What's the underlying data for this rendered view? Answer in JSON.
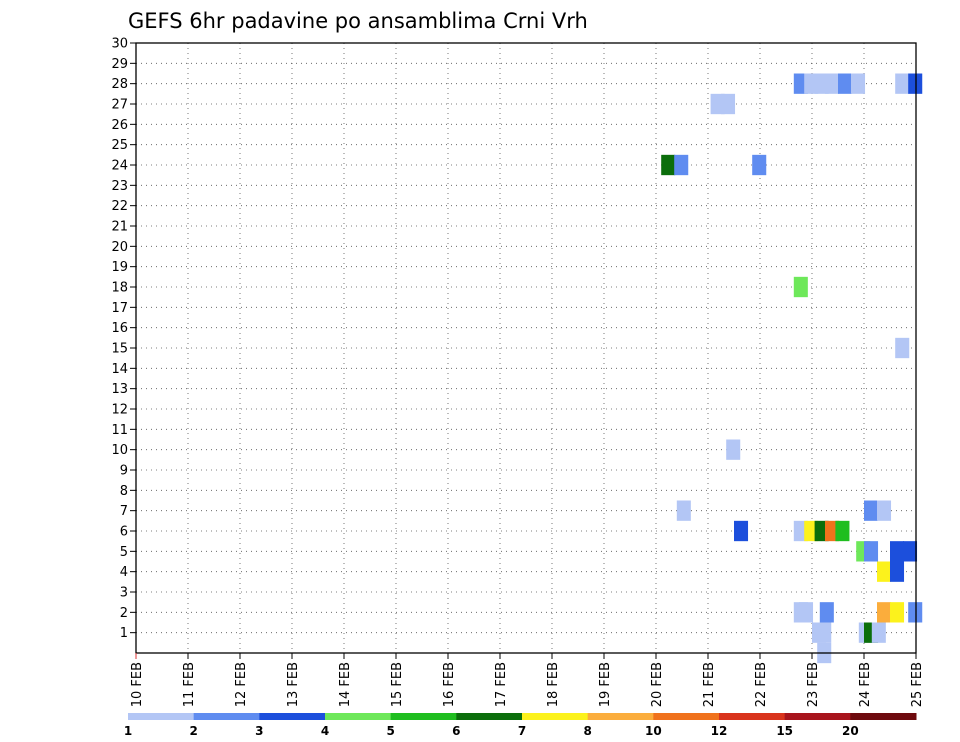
{
  "chart_data": {
    "type": "heatmap",
    "title": "GEFS 6hr padavine po ansamblima Crni Vrh",
    "xlabel": "",
    "ylabel": "",
    "x_ticks": [
      "10 FEB",
      "11 FEB",
      "12 FEB",
      "13 FEB",
      "14 FEB",
      "15 FEB",
      "16 FEB",
      "17 FEB",
      "18 FEB",
      "19 FEB",
      "20 FEB",
      "21 FEB",
      "22 FEB",
      "23 FEB",
      "24 FEB",
      "25 FEB"
    ],
    "x_range_days": [
      10,
      25
    ],
    "y_ticks": [
      "1",
      "2",
      "3",
      "4",
      "5",
      "6",
      "7",
      "8",
      "9",
      "10",
      "11",
      "12",
      "13",
      "14",
      "15",
      "16",
      "17",
      "18",
      "19",
      "20",
      "21",
      "22",
      "23",
      "24",
      "25",
      "26",
      "27",
      "28",
      "29",
      "30"
    ],
    "y_range": [
      0,
      30
    ],
    "grid": true,
    "legend": {
      "placement": "bottom",
      "labels": [
        "1",
        "2",
        "3",
        "4",
        "5",
        "6",
        "7",
        "8",
        "10",
        "12",
        "15",
        "20"
      ],
      "colors": [
        "#b3c6f5",
        "#5f8cf0",
        "#1c4fdc",
        "#6ee85a",
        "#1fbe1f",
        "#0b6e0b",
        "#fcf21c",
        "#fbad3c",
        "#f0721c",
        "#d9341c",
        "#a8141c",
        "#6e0a0e"
      ]
    },
    "cells": [
      {
        "day": 23.1,
        "member": 0,
        "color": "#b3c6f5"
      },
      {
        "day": 22.65,
        "member": 2,
        "color": "#b3c6f5"
      },
      {
        "day": 22.75,
        "member": 2,
        "color": "#b3c6f5"
      },
      {
        "day": 23.0,
        "member": 1,
        "color": "#b3c6f5"
      },
      {
        "day": 23.1,
        "member": 1,
        "color": "#b3c6f5"
      },
      {
        "day": 23.15,
        "member": 2,
        "color": "#5f8cf0"
      },
      {
        "day": 23.9,
        "member": 1,
        "color": "#b3c6f5"
      },
      {
        "day": 24.0,
        "member": 1,
        "color": "#0b6e0b"
      },
      {
        "day": 24.15,
        "member": 1,
        "color": "#b3c6f5"
      },
      {
        "day": 24.25,
        "member": 2,
        "color": "#fbad3c"
      },
      {
        "day": 24.5,
        "member": 2,
        "color": "#fcf21c"
      },
      {
        "day": 24.85,
        "member": 2,
        "color": "#5f8cf0"
      },
      {
        "day": 24.25,
        "member": 4,
        "color": "#fcf21c"
      },
      {
        "day": 24.5,
        "member": 4,
        "color": "#1c4fdc"
      },
      {
        "day": 23.85,
        "member": 5,
        "color": "#6ee85a"
      },
      {
        "day": 24.0,
        "member": 5,
        "color": "#5f8cf0"
      },
      {
        "day": 24.5,
        "member": 5,
        "color": "#1c4fdc"
      },
      {
        "day": 24.75,
        "member": 5,
        "color": "#1c4fdc"
      },
      {
        "day": 21.5,
        "member": 6,
        "color": "#1c4fdc"
      },
      {
        "day": 22.65,
        "member": 6,
        "color": "#b3c6f5"
      },
      {
        "day": 22.85,
        "member": 6,
        "color": "#fcf21c"
      },
      {
        "day": 23.05,
        "member": 6,
        "color": "#0b6e0b"
      },
      {
        "day": 23.25,
        "member": 6,
        "color": "#f0721c"
      },
      {
        "day": 23.45,
        "member": 6,
        "color": "#1fbe1f"
      },
      {
        "day": 20.4,
        "member": 7,
        "color": "#b3c6f5"
      },
      {
        "day": 24.0,
        "member": 7,
        "color": "#5f8cf0"
      },
      {
        "day": 24.25,
        "member": 7,
        "color": "#b3c6f5"
      },
      {
        "day": 21.35,
        "member": 10,
        "color": "#b3c6f5"
      },
      {
        "day": 24.6,
        "member": 15,
        "color": "#b3c6f5"
      },
      {
        "day": 22.65,
        "member": 18,
        "color": "#6ee85a"
      },
      {
        "day": 20.1,
        "member": 24,
        "color": "#0b6e0b"
      },
      {
        "day": 20.35,
        "member": 24,
        "color": "#5f8cf0"
      },
      {
        "day": 21.85,
        "member": 24,
        "color": "#5f8cf0"
      },
      {
        "day": 21.05,
        "member": 27,
        "color": "#b3c6f5"
      },
      {
        "day": 21.25,
        "member": 27,
        "color": "#b3c6f5"
      },
      {
        "day": 22.65,
        "member": 28,
        "color": "#5f8cf0"
      },
      {
        "day": 22.85,
        "member": 28,
        "color": "#b3c6f5"
      },
      {
        "day": 23.05,
        "member": 28,
        "color": "#b3c6f5"
      },
      {
        "day": 23.25,
        "member": 28,
        "color": "#b3c6f5"
      },
      {
        "day": 23.5,
        "member": 28,
        "color": "#5f8cf0"
      },
      {
        "day": 23.75,
        "member": 28,
        "color": "#b3c6f5"
      },
      {
        "day": 24.6,
        "member": 28,
        "color": "#b3c6f5"
      },
      {
        "day": 24.85,
        "member": 28,
        "color": "#1c4fdc"
      }
    ]
  }
}
